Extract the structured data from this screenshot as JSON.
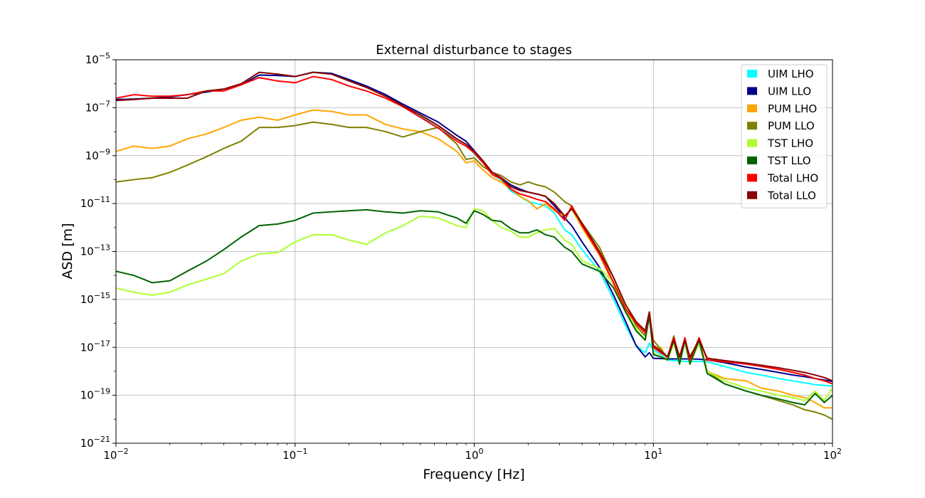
{
  "chart_data": {
    "type": "line",
    "title": "External disturbance to stages",
    "xlabel": "Frequency [Hz]",
    "ylabel": "ASD [m]",
    "x_scale": "log",
    "y_scale": "log",
    "xlim": [
      0.01,
      100
    ],
    "ylim": [
      1e-21,
      1e-05
    ],
    "grid": true,
    "legend_position": "top-right",
    "x_ticks": [
      {
        "value": 0.01,
        "base": "10",
        "exp": "−2"
      },
      {
        "value": 0.1,
        "base": "10",
        "exp": "−1"
      },
      {
        "value": 1,
        "base": "10",
        "exp": "0"
      },
      {
        "value": 10,
        "base": "10",
        "exp": "1"
      },
      {
        "value": 100,
        "base": "10",
        "exp": "2"
      }
    ],
    "y_ticks": [
      {
        "value": 1e-21,
        "base": "10",
        "exp": "−21"
      },
      {
        "value": 1e-19,
        "base": "10",
        "exp": "−19"
      },
      {
        "value": 1e-17,
        "base": "10",
        "exp": "−17"
      },
      {
        "value": 1e-15,
        "base": "10",
        "exp": "−15"
      },
      {
        "value": 1e-13,
        "base": "10",
        "exp": "−13"
      },
      {
        "value": 1e-11,
        "base": "10",
        "exp": "−11"
      },
      {
        "value": 1e-09,
        "base": "10",
        "exp": "−9"
      },
      {
        "value": 1e-07,
        "base": "10",
        "exp": "−7"
      },
      {
        "value": 1e-05,
        "base": "10",
        "exp": "−5"
      }
    ],
    "series": [
      {
        "name": "UIM LHO",
        "color": "#00ffff",
        "x": [
          0.01,
          0.0126,
          0.0159,
          0.02,
          0.025,
          0.032,
          0.04,
          0.05,
          0.063,
          0.08,
          0.1,
          0.126,
          0.16,
          0.2,
          0.25,
          0.32,
          0.4,
          0.5,
          0.63,
          0.8,
          0.9,
          1,
          1.12,
          1.26,
          1.41,
          1.6,
          1.8,
          2,
          2.24,
          2.5,
          2.8,
          3.2,
          3.5,
          4,
          5,
          6,
          7,
          8,
          9,
          9.5,
          10,
          11,
          12,
          13,
          14,
          15,
          16,
          18,
          20,
          25,
          33,
          40,
          50,
          60,
          70,
          80,
          90,
          100
        ],
        "y": [
          2.2e-07,
          2.3e-07,
          2.5e-07,
          2.8e-07,
          3.5e-07,
          4.5e-07,
          6e-07,
          9e-07,
          2.3e-06,
          2.2e-06,
          2e-06,
          3e-06,
          2.7e-06,
          1.5e-06,
          8e-07,
          3.5e-07,
          1.2e-07,
          4.5e-08,
          1.4e-08,
          5e-09,
          3e-09,
          1.2e-09,
          5e-10,
          1.6e-10,
          1e-10,
          3.3e-11,
          2e-11,
          1.2e-11,
          1e-11,
          8e-12,
          4e-12,
          8e-13,
          5e-13,
          1.2e-13,
          1.5e-14,
          1e-15,
          8e-17,
          1.2e-17,
          6e-18,
          1.5e-17,
          8e-18,
          5e-18,
          3e-18,
          2.8e-18,
          2.7e-18,
          2.6e-18,
          2.6e-18,
          2.6e-18,
          2.5e-18,
          1.6e-18,
          9e-19,
          7e-19,
          5e-19,
          4e-19,
          3.3e-19,
          2.8e-19,
          2.6e-19,
          2.4e-19
        ]
      },
      {
        "name": "UIM LLO",
        "color": "#00008b",
        "x": [
          0.01,
          0.0126,
          0.0159,
          0.02,
          0.025,
          0.032,
          0.04,
          0.05,
          0.063,
          0.08,
          0.1,
          0.126,
          0.16,
          0.2,
          0.25,
          0.32,
          0.4,
          0.5,
          0.63,
          0.8,
          0.9,
          1,
          1.12,
          1.26,
          1.41,
          1.6,
          1.8,
          2,
          2.24,
          2.5,
          2.8,
          3.2,
          3.5,
          4,
          5,
          6,
          7,
          8,
          9,
          9.5,
          10,
          11,
          12,
          13,
          14,
          15,
          16,
          18,
          20,
          25,
          33,
          40,
          50,
          60,
          70,
          80,
          90,
          100
        ],
        "y": [
          2.2e-07,
          2.3e-07,
          2.5e-07,
          2.8e-07,
          3.5e-07,
          4.5e-07,
          6e-07,
          9e-07,
          2.3e-06,
          2.2e-06,
          2e-06,
          3e-06,
          2.7e-06,
          1.5e-06,
          8e-07,
          3.5e-07,
          1.4e-07,
          6e-08,
          2.5e-08,
          7e-09,
          4e-09,
          1.6e-09,
          6e-10,
          2e-10,
          1.2e-10,
          6e-11,
          4e-11,
          3e-11,
          2.5e-11,
          2e-11,
          8e-12,
          2.5e-12,
          1.2e-12,
          2.5e-13,
          2.2e-14,
          1.5e-15,
          1.2e-16,
          1.2e-17,
          4e-18,
          6e-18,
          3.5e-18,
          3.4e-18,
          3.3e-18,
          3.3e-18,
          3.3e-18,
          3.3e-18,
          3.3e-18,
          3.2e-18,
          3e-18,
          2.3e-18,
          1.5e-18,
          1.2e-18,
          9e-19,
          7e-19,
          6e-19,
          5e-19,
          4.3e-19,
          3.8e-19
        ]
      },
      {
        "name": "PUM LHO",
        "color": "#ffa500",
        "x": [
          0.01,
          0.0126,
          0.0159,
          0.02,
          0.025,
          0.032,
          0.04,
          0.05,
          0.063,
          0.08,
          0.1,
          0.126,
          0.16,
          0.2,
          0.25,
          0.32,
          0.4,
          0.5,
          0.63,
          0.8,
          0.9,
          1,
          1.12,
          1.26,
          1.41,
          1.6,
          1.8,
          2,
          2.24,
          2.5,
          2.8,
          3.2,
          3.5,
          4,
          5,
          6,
          7,
          8,
          9,
          9.5,
          10,
          11,
          12,
          13,
          14,
          15,
          16,
          18,
          20,
          25,
          33,
          40,
          50,
          60,
          70,
          80,
          90,
          100
        ],
        "y": [
          1.5e-09,
          2.5e-09,
          2e-09,
          2.5e-09,
          5e-09,
          8e-09,
          1.5e-08,
          3e-08,
          4e-08,
          3e-08,
          5e-08,
          8e-08,
          7e-08,
          5e-08,
          5e-08,
          2e-08,
          1.3e-08,
          1e-08,
          5e-09,
          1.5e-09,
          5e-10,
          6e-10,
          2.5e-10,
          1.2e-10,
          8e-11,
          4e-11,
          2e-11,
          1.3e-11,
          6e-12,
          1e-11,
          5e-12,
          3e-12,
          6e-12,
          1e-12,
          7e-14,
          4e-15,
          3e-16,
          8e-17,
          3e-17,
          3e-16,
          1e-17,
          1e-17,
          3e-18,
          2.5e-17,
          3e-18,
          2.5e-17,
          3e-18,
          2.5e-17,
          1e-18,
          5e-19,
          4e-19,
          2e-19,
          1.5e-19,
          1e-19,
          8e-20,
          5e-20,
          3e-20,
          3e-20
        ]
      },
      {
        "name": "PUM LLO",
        "color": "#808000",
        "x": [
          0.01,
          0.0126,
          0.0159,
          0.02,
          0.025,
          0.032,
          0.04,
          0.05,
          0.063,
          0.08,
          0.1,
          0.126,
          0.16,
          0.2,
          0.25,
          0.32,
          0.4,
          0.5,
          0.63,
          0.8,
          0.9,
          1,
          1.12,
          1.26,
          1.41,
          1.6,
          1.8,
          2,
          2.24,
          2.5,
          2.8,
          3.2,
          3.5,
          4,
          5,
          6,
          7,
          8,
          9,
          9.5,
          10,
          11,
          12,
          13,
          14,
          15,
          16,
          18,
          20,
          25,
          33,
          40,
          50,
          60,
          70,
          80,
          90,
          100
        ],
        "y": [
          8e-11,
          1e-10,
          1.2e-10,
          2e-10,
          4e-10,
          9e-10,
          2e-09,
          4e-09,
          1.5e-08,
          1.5e-08,
          1.8e-08,
          2.5e-08,
          2e-08,
          1.5e-08,
          1.5e-08,
          1e-08,
          6e-09,
          1e-08,
          1.5e-08,
          3e-09,
          7e-10,
          8e-10,
          3.5e-10,
          2e-10,
          1.5e-10,
          8e-11,
          6e-11,
          8e-11,
          6e-11,
          5e-11,
          3e-11,
          1.2e-11,
          8e-12,
          1.5e-12,
          1.5e-13,
          8e-15,
          6e-16,
          8e-17,
          3e-17,
          2e-16,
          2e-17,
          8e-18,
          4e-18,
          3e-17,
          3e-18,
          1.5e-17,
          3e-18,
          1.5e-17,
          1e-18,
          3e-19,
          1.5e-19,
          1e-19,
          6e-20,
          4e-20,
          2.5e-20,
          2e-20,
          1.5e-20,
          1e-20
        ]
      },
      {
        "name": "TST LHO",
        "color": "#adff2f",
        "x": [
          0.01,
          0.0126,
          0.0159,
          0.02,
          0.025,
          0.032,
          0.04,
          0.05,
          0.063,
          0.08,
          0.1,
          0.126,
          0.16,
          0.2,
          0.25,
          0.32,
          0.4,
          0.5,
          0.63,
          0.8,
          0.9,
          1,
          1.12,
          1.26,
          1.41,
          1.6,
          1.8,
          2,
          2.24,
          2.5,
          2.8,
          3.2,
          3.5,
          4,
          5,
          6,
          7,
          8,
          9,
          9.5,
          10,
          11,
          12,
          13,
          14,
          15,
          16,
          18,
          20,
          25,
          33,
          40,
          50,
          60,
          70,
          80,
          90,
          100
        ],
        "y": [
          3e-15,
          2e-15,
          1.5e-15,
          2e-15,
          4e-15,
          7e-15,
          1.2e-14,
          4e-14,
          8e-14,
          9e-14,
          2.5e-13,
          5e-13,
          5e-13,
          3e-13,
          2e-13,
          6e-13,
          1.2e-12,
          3e-12,
          2.5e-12,
          1.2e-12,
          1e-12,
          6e-12,
          5e-12,
          2e-12,
          1e-12,
          7e-13,
          4e-13,
          4e-13,
          6e-13,
          8e-13,
          9e-13,
          3e-13,
          2e-13,
          4e-14,
          2e-14,
          5e-15,
          5e-16,
          6e-17,
          2e-17,
          2e-16,
          6e-18,
          4e-18,
          3e-18,
          1.5e-17,
          2e-18,
          1.5e-17,
          2e-18,
          1.5e-17,
          1e-18,
          4e-19,
          2e-19,
          1.5e-19,
          1e-19,
          8e-20,
          6e-20,
          1.5e-19,
          6e-20,
          2e-19
        ]
      },
      {
        "name": "TST LLO",
        "color": "#006400",
        "x": [
          0.01,
          0.0126,
          0.0159,
          0.02,
          0.025,
          0.032,
          0.04,
          0.05,
          0.063,
          0.08,
          0.1,
          0.126,
          0.16,
          0.2,
          0.25,
          0.32,
          0.4,
          0.5,
          0.63,
          0.8,
          0.9,
          1,
          1.12,
          1.26,
          1.41,
          1.6,
          1.8,
          2,
          2.24,
          2.5,
          2.8,
          3.2,
          3.5,
          4,
          5,
          6,
          7,
          8,
          9,
          9.5,
          10,
          11,
          12,
          13,
          14,
          15,
          16,
          18,
          20,
          25,
          33,
          40,
          50,
          60,
          70,
          80,
          90,
          100
        ],
        "y": [
          1.5e-14,
          1e-14,
          5e-15,
          6e-15,
          1.5e-14,
          4e-14,
          1.2e-13,
          4e-13,
          1.2e-12,
          1.4e-12,
          2e-12,
          4e-12,
          4.5e-12,
          5e-12,
          5.5e-12,
          4.5e-12,
          4e-12,
          5e-12,
          4.5e-12,
          2.5e-12,
          1.5e-12,
          5e-12,
          3.5e-12,
          2e-12,
          1.8e-12,
          9e-13,
          6e-13,
          6e-13,
          8e-13,
          5e-13,
          4e-13,
          1.5e-13,
          1e-13,
          3e-14,
          1.5e-14,
          3e-15,
          3e-16,
          5e-17,
          2e-17,
          2e-16,
          5e-18,
          4e-18,
          3e-18,
          2e-17,
          2e-18,
          2e-17,
          2e-18,
          2e-17,
          8e-19,
          3e-19,
          1.5e-19,
          1e-19,
          7e-20,
          5e-20,
          4e-20,
          1.2e-19,
          5e-20,
          1e-19
        ]
      },
      {
        "name": "Total LHO",
        "color": "#ff0000",
        "x": [
          0.01,
          0.0126,
          0.0159,
          0.02,
          0.025,
          0.032,
          0.04,
          0.05,
          0.063,
          0.08,
          0.1,
          0.126,
          0.16,
          0.2,
          0.25,
          0.32,
          0.4,
          0.5,
          0.63,
          0.8,
          0.9,
          1,
          1.12,
          1.26,
          1.41,
          1.6,
          1.8,
          2,
          2.24,
          2.5,
          2.8,
          3.2,
          3.5,
          4,
          5,
          6,
          7,
          8,
          9,
          9.5,
          10,
          11,
          12,
          13,
          14,
          15,
          16,
          18,
          20,
          25,
          33,
          40,
          50,
          60,
          70,
          80,
          90,
          100
        ],
        "y": [
          2.5e-07,
          3.5e-07,
          3e-07,
          3e-07,
          3.5e-07,
          5e-07,
          5e-07,
          9e-07,
          1.8e-06,
          1.3e-06,
          1.1e-06,
          2e-06,
          1.5e-06,
          8e-07,
          5e-07,
          2.5e-07,
          1.1e-07,
          4e-08,
          1.4e-08,
          4e-09,
          2.5e-09,
          1.3e-09,
          5e-10,
          1.6e-10,
          1.1e-10,
          4e-11,
          2.5e-11,
          2e-11,
          1.5e-11,
          1.2e-11,
          6e-12,
          2e-12,
          8e-12,
          1.2e-12,
          8e-14,
          5e-15,
          4e-16,
          1e-16,
          4e-17,
          3e-16,
          1e-17,
          6e-18,
          4e-18,
          2.5e-17,
          4e-18,
          2.5e-17,
          3e-18,
          2.5e-17,
          3e-18,
          2.5e-18,
          2e-18,
          1.6e-18,
          1.2e-18,
          9e-19,
          7e-19,
          5e-19,
          4e-19,
          3e-19
        ]
      },
      {
        "name": "Total LLO",
        "color": "#8b0000",
        "x": [
          0.01,
          0.0126,
          0.0159,
          0.02,
          0.025,
          0.032,
          0.04,
          0.05,
          0.063,
          0.08,
          0.1,
          0.126,
          0.16,
          0.2,
          0.25,
          0.32,
          0.4,
          0.5,
          0.63,
          0.8,
          0.9,
          1,
          1.12,
          1.26,
          1.41,
          1.6,
          1.8,
          2,
          2.24,
          2.5,
          2.8,
          3.2,
          3.5,
          4,
          5,
          6,
          7,
          8,
          9,
          9.5,
          10,
          11,
          12,
          13,
          14,
          15,
          16,
          18,
          20,
          25,
          33,
          40,
          50,
          60,
          70,
          80,
          90,
          100
        ],
        "y": [
          2e-07,
          2.2e-07,
          2.5e-07,
          2.5e-07,
          2.5e-07,
          5e-07,
          6e-07,
          1e-06,
          3e-06,
          2.5e-06,
          2e-06,
          3e-06,
          2.5e-06,
          1.3e-06,
          7e-07,
          3e-07,
          1.2e-07,
          5e-08,
          1.8e-08,
          5e-09,
          3e-09,
          1.5e-09,
          6e-10,
          2e-10,
          1.2e-10,
          5e-11,
          3.5e-11,
          3e-11,
          2.5e-11,
          2e-11,
          1e-11,
          3e-12,
          6e-12,
          1.5e-12,
          1e-13,
          8e-15,
          6e-16,
          1.2e-16,
          5e-17,
          3e-16,
          1.2e-17,
          7e-18,
          4e-18,
          2e-17,
          4e-18,
          2e-17,
          4e-18,
          2e-17,
          3.5e-18,
          2.8e-18,
          2.2e-18,
          1.8e-18,
          1.4e-18,
          1.1e-18,
          9e-19,
          7e-19,
          5.5e-19,
          4e-19
        ]
      }
    ]
  }
}
